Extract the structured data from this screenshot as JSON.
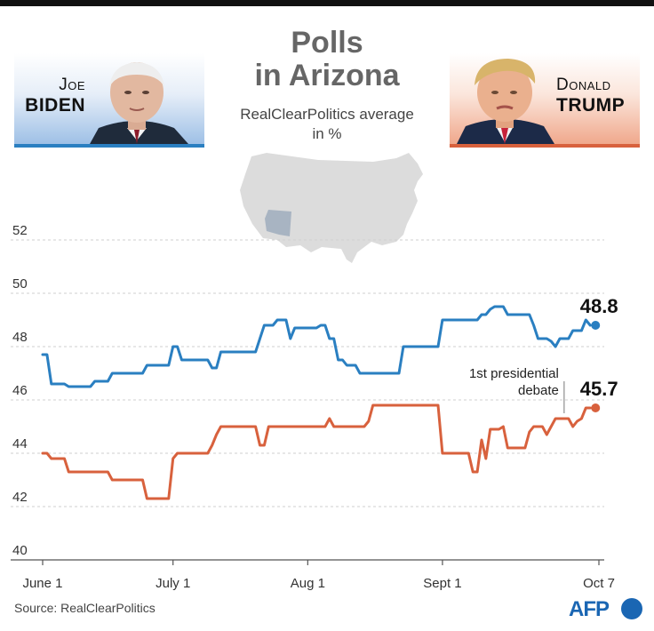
{
  "header": {
    "title_line1": "Polls",
    "title_line2": "in Arizona",
    "subtitle_line1": "RealClearPolitics average",
    "subtitle_line2": "in %"
  },
  "candidates": {
    "biden": {
      "first": "Joe",
      "last": "BIDEN",
      "color": "#2a7fc1"
    },
    "trump": {
      "first": "Donald",
      "last": "TRUMP",
      "color": "#d8613d"
    }
  },
  "footer": {
    "source": "Source: RealClearPolitics",
    "logo": "AFP"
  },
  "icons": [
    "biden-portrait-icon",
    "trump-portrait-icon",
    "us-map-icon",
    "afp-logo-icon"
  ],
  "chart_data": {
    "type": "line",
    "x_axis": {
      "range": [
        "2020-06-01",
        "2020-10-07"
      ],
      "ticks": [
        {
          "date": "2020-06-01",
          "label": "June 1"
        },
        {
          "date": "2020-07-01",
          "label": "July 1"
        },
        {
          "date": "2020-08-01",
          "label": "Aug 1"
        },
        {
          "date": "2020-09-01",
          "label": "Sept 1"
        },
        {
          "date": "2020-10-07",
          "label": "Oct 7"
        }
      ]
    },
    "y_axis": {
      "range": [
        40,
        53
      ],
      "ticks": [
        40,
        42,
        44,
        46,
        48,
        50,
        52
      ],
      "grid": true
    },
    "series": [
      {
        "name": "Joe Biden",
        "color": "#2a7fc1",
        "end_label": "48.8",
        "end_value": 48.8,
        "points": [
          [
            "2020-06-01",
            47.7
          ],
          [
            "2020-06-02",
            47.7
          ],
          [
            "2020-06-03",
            46.6
          ],
          [
            "2020-06-06",
            46.6
          ],
          [
            "2020-06-07",
            46.5
          ],
          [
            "2020-06-12",
            46.5
          ],
          [
            "2020-06-13",
            46.7
          ],
          [
            "2020-06-16",
            46.7
          ],
          [
            "2020-06-17",
            47.0
          ],
          [
            "2020-06-24",
            47.0
          ],
          [
            "2020-06-25",
            47.3
          ],
          [
            "2020-06-30",
            47.3
          ],
          [
            "2020-07-01",
            48.0
          ],
          [
            "2020-07-02",
            48.0
          ],
          [
            "2020-07-03",
            47.5
          ],
          [
            "2020-07-09",
            47.5
          ],
          [
            "2020-07-10",
            47.2
          ],
          [
            "2020-07-11",
            47.2
          ],
          [
            "2020-07-12",
            47.8
          ],
          [
            "2020-07-20",
            47.8
          ],
          [
            "2020-07-22",
            48.8
          ],
          [
            "2020-07-24",
            48.8
          ],
          [
            "2020-07-25",
            49.0
          ],
          [
            "2020-07-27",
            49.0
          ],
          [
            "2020-07-28",
            48.3
          ],
          [
            "2020-07-29",
            48.7
          ],
          [
            "2020-08-03",
            48.7
          ],
          [
            "2020-08-04",
            48.8
          ],
          [
            "2020-08-05",
            48.8
          ],
          [
            "2020-08-06",
            48.3
          ],
          [
            "2020-08-07",
            48.3
          ],
          [
            "2020-08-08",
            47.5
          ],
          [
            "2020-08-09",
            47.5
          ],
          [
            "2020-08-10",
            47.3
          ],
          [
            "2020-08-12",
            47.3
          ],
          [
            "2020-08-13",
            47.0
          ],
          [
            "2020-08-22",
            47.0
          ],
          [
            "2020-08-23",
            48.0
          ],
          [
            "2020-08-31",
            48.0
          ],
          [
            "2020-09-01",
            49.0
          ],
          [
            "2020-09-09",
            49.0
          ],
          [
            "2020-09-10",
            49.2
          ],
          [
            "2020-09-11",
            49.2
          ],
          [
            "2020-09-12",
            49.4
          ],
          [
            "2020-09-13",
            49.5
          ],
          [
            "2020-09-15",
            49.5
          ],
          [
            "2020-09-16",
            49.2
          ],
          [
            "2020-09-21",
            49.2
          ],
          [
            "2020-09-22",
            48.8
          ],
          [
            "2020-09-23",
            48.3
          ],
          [
            "2020-09-25",
            48.3
          ],
          [
            "2020-09-26",
            48.2
          ],
          [
            "2020-09-27",
            48.0
          ],
          [
            "2020-09-28",
            48.3
          ],
          [
            "2020-09-30",
            48.3
          ],
          [
            "2020-10-01",
            48.6
          ],
          [
            "2020-10-03",
            48.6
          ],
          [
            "2020-10-04",
            49.0
          ],
          [
            "2020-10-05",
            48.8
          ]
        ]
      },
      {
        "name": "Donald Trump",
        "color": "#d8613d",
        "end_label": "45.7",
        "end_value": 45.7,
        "points": [
          [
            "2020-06-01",
            44.0
          ],
          [
            "2020-06-02",
            44.0
          ],
          [
            "2020-06-03",
            43.8
          ],
          [
            "2020-06-06",
            43.8
          ],
          [
            "2020-06-07",
            43.3
          ],
          [
            "2020-06-16",
            43.3
          ],
          [
            "2020-06-17",
            43.0
          ],
          [
            "2020-06-24",
            43.0
          ],
          [
            "2020-06-25",
            42.3
          ],
          [
            "2020-06-30",
            42.3
          ],
          [
            "2020-07-01",
            43.8
          ],
          [
            "2020-07-02",
            44.0
          ],
          [
            "2020-07-09",
            44.0
          ],
          [
            "2020-07-10",
            44.3
          ],
          [
            "2020-07-11",
            44.7
          ],
          [
            "2020-07-12",
            45.0
          ],
          [
            "2020-07-20",
            45.0
          ],
          [
            "2020-07-21",
            44.3
          ],
          [
            "2020-07-22",
            44.3
          ],
          [
            "2020-07-23",
            45.0
          ],
          [
            "2020-08-05",
            45.0
          ],
          [
            "2020-08-06",
            45.3
          ],
          [
            "2020-08-07",
            45.0
          ],
          [
            "2020-08-14",
            45.0
          ],
          [
            "2020-08-15",
            45.2
          ],
          [
            "2020-08-16",
            45.8
          ],
          [
            "2020-08-31",
            45.8
          ],
          [
            "2020-09-01",
            44.0
          ],
          [
            "2020-09-07",
            44.0
          ],
          [
            "2020-09-08",
            43.3
          ],
          [
            "2020-09-09",
            43.3
          ],
          [
            "2020-09-10",
            44.5
          ],
          [
            "2020-09-11",
            43.8
          ],
          [
            "2020-09-12",
            44.9
          ],
          [
            "2020-09-14",
            44.9
          ],
          [
            "2020-09-15",
            45.0
          ],
          [
            "2020-09-16",
            44.2
          ],
          [
            "2020-09-20",
            44.2
          ],
          [
            "2020-09-21",
            44.8
          ],
          [
            "2020-09-22",
            45.0
          ],
          [
            "2020-09-24",
            45.0
          ],
          [
            "2020-09-25",
            44.7
          ],
          [
            "2020-09-27",
            45.3
          ],
          [
            "2020-09-30",
            45.3
          ],
          [
            "2020-10-01",
            45.0
          ],
          [
            "2020-10-02",
            45.2
          ],
          [
            "2020-10-03",
            45.3
          ],
          [
            "2020-10-04",
            45.7
          ],
          [
            "2020-10-05",
            45.7
          ]
        ]
      }
    ],
    "annotations": [
      {
        "date": "2020-09-29",
        "text_line1": "1st presidential",
        "text_line2": "debate"
      }
    ]
  }
}
